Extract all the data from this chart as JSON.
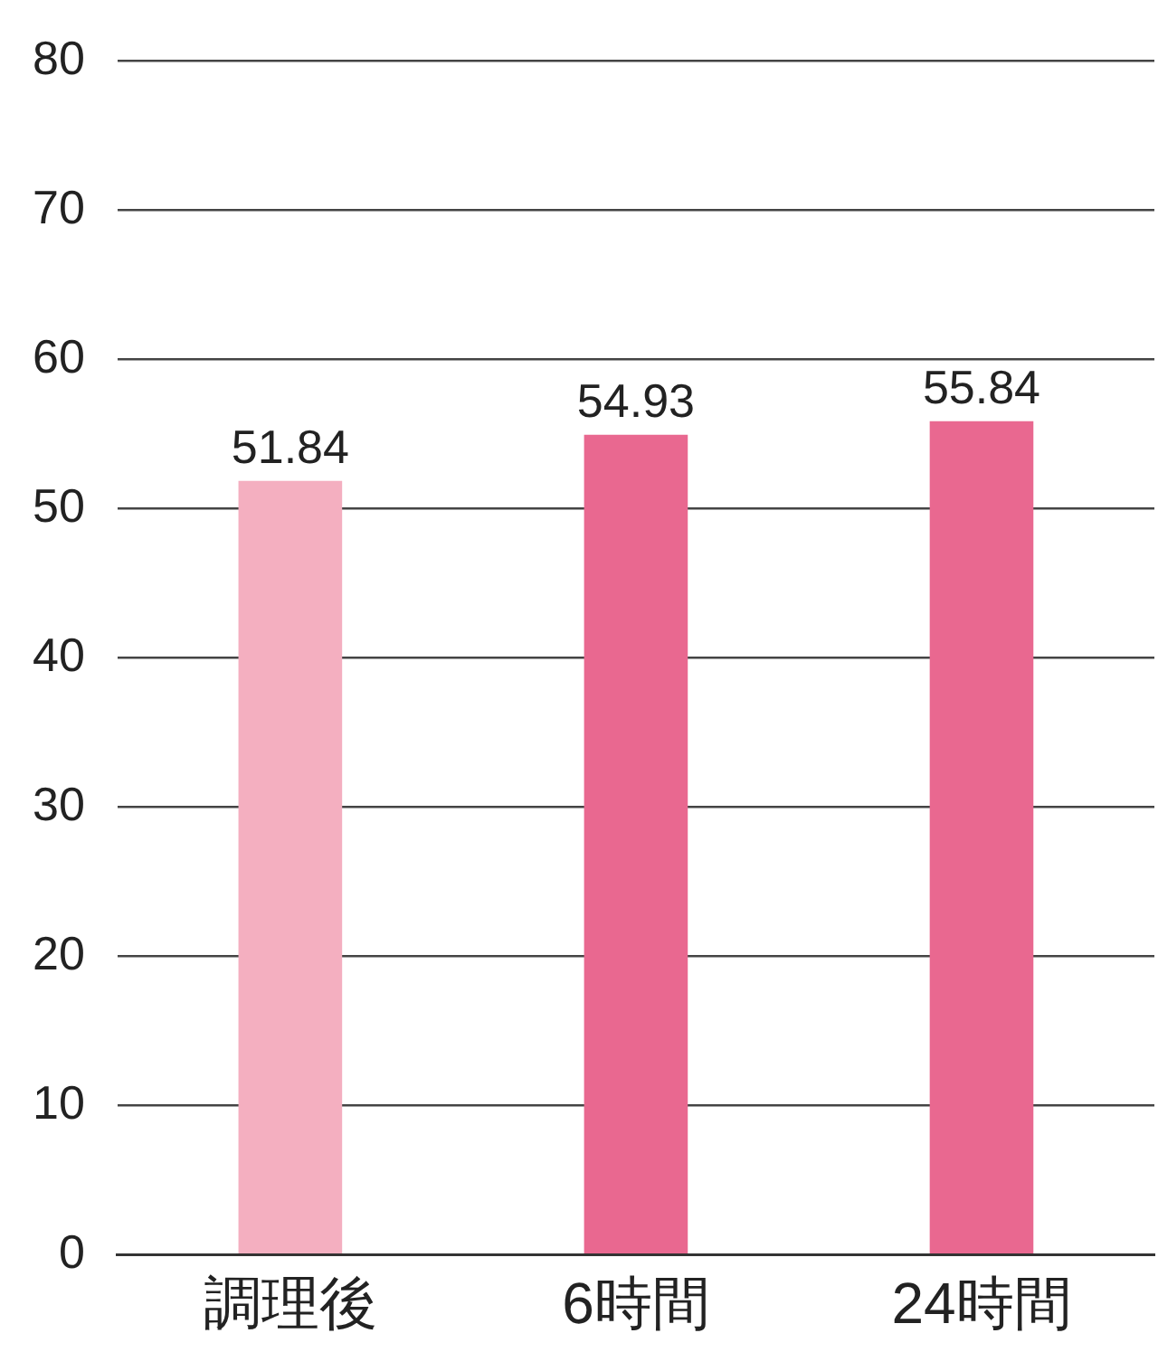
{
  "chart_data": {
    "type": "bar",
    "categories": [
      "調理後",
      "6時間",
      "24時間"
    ],
    "values": [
      51.84,
      54.93,
      55.84
    ],
    "colors": [
      "#f4afc0",
      "#e96890",
      "#e96890"
    ],
    "ylim": [
      0,
      80
    ],
    "yticks": [
      0,
      10,
      20,
      30,
      40,
      50,
      60,
      70,
      80
    ],
    "grid": "y",
    "legend": false,
    "data_labels": true
  }
}
